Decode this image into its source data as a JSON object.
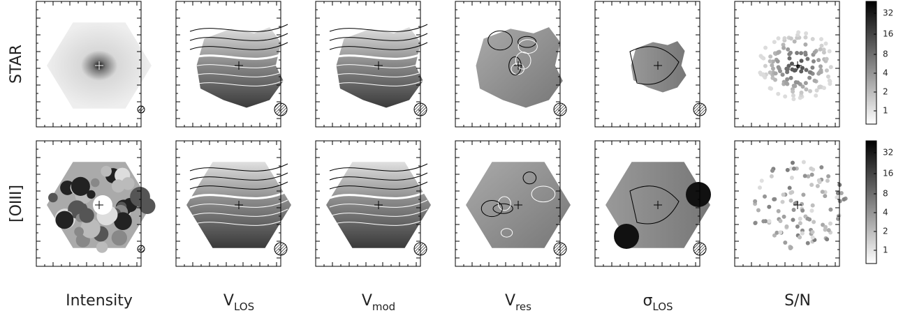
{
  "rows": [
    {
      "label": "STAR"
    },
    {
      "label": "[OIII]"
    }
  ],
  "columns": [
    {
      "label": "Intensity"
    },
    {
      "label": "V",
      "subscript": "LOS"
    },
    {
      "label": "V",
      "subscript": "mod"
    },
    {
      "label": "V",
      "subscript": "res"
    },
    {
      "label": "σ",
      "subscript": "LOS"
    },
    {
      "label": "S/N"
    }
  ],
  "colorbar": {
    "ticks": [
      "32",
      "16",
      "8",
      "4",
      "2",
      "1"
    ]
  }
}
